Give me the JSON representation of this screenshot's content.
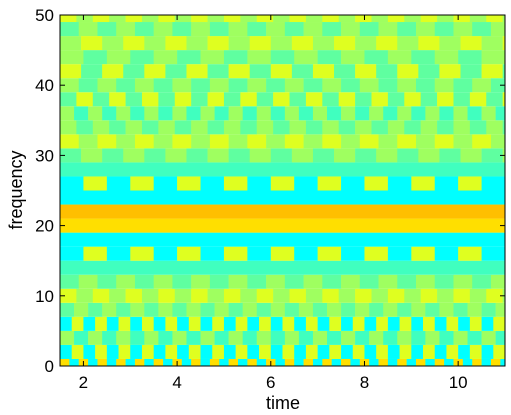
{
  "chart_data": {
    "type": "heatmap",
    "title": "",
    "xlabel": "time",
    "ylabel": "frequency",
    "xlim": [
      1.5,
      11
    ],
    "ylim": [
      0,
      50
    ],
    "x_ticks": [
      2,
      4,
      6,
      8,
      10
    ],
    "y_ticks": [
      0,
      10,
      20,
      30,
      40,
      50
    ],
    "colormap": "jet",
    "colors": {
      "cyan": "#00ffff",
      "light_cyan": "#40ffbf",
      "aqua_green": "#5fffa0",
      "lime": "#9fff60",
      "yellow_green": "#dfff20",
      "yellow": "#ffdf00",
      "orange": "#ffbf00"
    },
    "bands": [
      {
        "y": [
          0,
          1
        ],
        "pattern": "alternating",
        "colors": [
          "yellow",
          "cyan"
        ],
        "period": 0.2
      },
      {
        "y": [
          1,
          3
        ],
        "pattern": "alternating",
        "colors": [
          "yellow_green",
          "cyan"
        ],
        "period": 0.25
      },
      {
        "y": [
          3,
          5
        ],
        "pattern": "alternating",
        "colors": [
          "lime",
          "light_cyan"
        ],
        "period": 0.3
      },
      {
        "y": [
          5,
          7
        ],
        "pattern": "alternating",
        "colors": [
          "yellow_green",
          "cyan"
        ],
        "period": 0.25
      },
      {
        "y": [
          7,
          9
        ],
        "pattern": "alternating",
        "colors": [
          "aqua_green",
          "lime"
        ],
        "period": 0.3
      },
      {
        "y": [
          9,
          11
        ],
        "pattern": "alternating",
        "colors": [
          "lime",
          "yellow_green"
        ],
        "period": 0.35
      },
      {
        "y": [
          11,
          13
        ],
        "pattern": "alternating",
        "colors": [
          "aqua_green",
          "lime"
        ],
        "period": 0.4
      },
      {
        "y": [
          13,
          15
        ],
        "pattern": "solid",
        "colors": [
          "light_cyan"
        ]
      },
      {
        "y": [
          15,
          17
        ],
        "pattern": "blocks",
        "colors": [
          "cyan",
          "yellow_green"
        ],
        "period": 0.5
      },
      {
        "y": [
          17,
          19
        ],
        "pattern": "solid",
        "colors": [
          "cyan"
        ]
      },
      {
        "y": [
          19,
          21
        ],
        "pattern": "solid",
        "colors": [
          "yellow"
        ]
      },
      {
        "y": [
          21,
          23
        ],
        "pattern": "solid",
        "colors": [
          "orange"
        ]
      },
      {
        "y": [
          23,
          25
        ],
        "pattern": "solid",
        "colors": [
          "cyan"
        ]
      },
      {
        "y": [
          25,
          27
        ],
        "pattern": "blocks",
        "colors": [
          "cyan",
          "yellow_green"
        ],
        "period": 0.5
      },
      {
        "y": [
          27,
          29
        ],
        "pattern": "solid",
        "colors": [
          "light_cyan"
        ]
      },
      {
        "y": [
          29,
          31
        ],
        "pattern": "alternating",
        "colors": [
          "lime",
          "aqua_green"
        ],
        "period": 0.45
      },
      {
        "y": [
          31,
          33
        ],
        "pattern": "alternating",
        "colors": [
          "yellow_green",
          "lime"
        ],
        "period": 0.4
      },
      {
        "y": [
          33,
          35
        ],
        "pattern": "alternating",
        "colors": [
          "aqua_green",
          "lime"
        ],
        "period": 0.35
      },
      {
        "y": [
          35,
          37
        ],
        "pattern": "alternating",
        "colors": [
          "lime",
          "light_cyan"
        ],
        "period": 0.3
      },
      {
        "y": [
          37,
          39
        ],
        "pattern": "alternating",
        "colors": [
          "yellow_green",
          "aqua_green"
        ],
        "period": 0.35
      },
      {
        "y": [
          39,
          41
        ],
        "pattern": "alternating",
        "colors": [
          "lime",
          "aqua_green"
        ],
        "period": 0.4
      },
      {
        "y": [
          41,
          43
        ],
        "pattern": "alternating",
        "colors": [
          "aqua_green",
          "yellow_green"
        ],
        "period": 0.45
      },
      {
        "y": [
          43,
          45
        ],
        "pattern": "alternating",
        "colors": [
          "lime",
          "aqua_green"
        ],
        "period": 0.5
      },
      {
        "y": [
          45,
          47
        ],
        "pattern": "alternating",
        "colors": [
          "yellow_green",
          "lime"
        ],
        "period": 0.45
      },
      {
        "y": [
          47,
          49
        ],
        "pattern": "alternating",
        "colors": [
          "aqua_green",
          "lime"
        ],
        "period": 0.4
      },
      {
        "y": [
          49,
          50
        ],
        "pattern": "alternating",
        "colors": [
          "lime",
          "yellow_green"
        ],
        "period": 0.35
      }
    ]
  }
}
